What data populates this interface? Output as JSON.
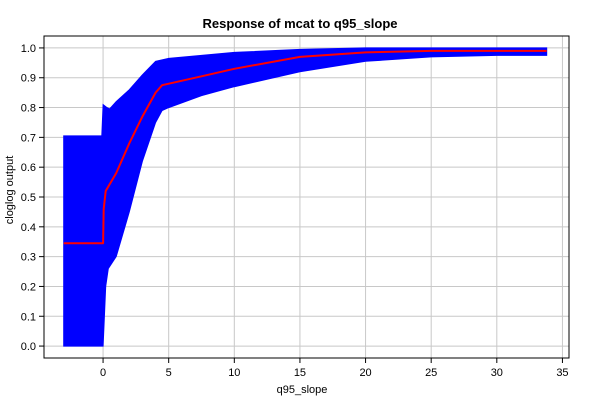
{
  "chart_data": {
    "type": "area",
    "title": "Response of mcat to q95_slope",
    "xlabel": "q95_slope",
    "ylabel": "cloglog output",
    "xlim": [
      -4.5,
      35.5
    ],
    "ylim": [
      -0.04,
      1.04
    ],
    "x_ticks": [
      0,
      5,
      10,
      15,
      20,
      25,
      30,
      35
    ],
    "y_ticks": [
      0.0,
      0.1,
      0.2,
      0.3,
      0.4,
      0.5,
      0.6,
      0.7,
      0.8,
      0.9,
      1.0
    ],
    "x_tick_labels": [
      "0",
      "5",
      "10",
      "15",
      "20",
      "25",
      "30",
      "35"
    ],
    "y_tick_labels": [
      "0.0",
      "0.1",
      "0.2",
      "0.3",
      "0.4",
      "0.5",
      "0.6",
      "0.7",
      "0.8",
      "0.9",
      "1.0"
    ],
    "grid": true,
    "series": [
      {
        "type": "band",
        "color": "#0000ff",
        "upper": [
          [
            -3.0,
            0.705
          ],
          [
            -0.1,
            0.705
          ],
          [
            -0.1,
            0.705
          ],
          [
            0.0,
            0.81
          ],
          [
            0.3,
            0.8
          ],
          [
            0.5,
            0.795
          ],
          [
            1.0,
            0.82
          ],
          [
            2.0,
            0.86
          ],
          [
            3.0,
            0.91
          ],
          [
            4.0,
            0.955
          ],
          [
            5.0,
            0.965
          ],
          [
            7.5,
            0.975
          ],
          [
            10.0,
            0.985
          ],
          [
            15.0,
            0.995
          ],
          [
            20.0,
            1.0
          ],
          [
            25.0,
            1.0
          ],
          [
            30.0,
            1.0
          ],
          [
            33.8,
            1.0
          ]
        ],
        "lower": [
          [
            -3.0,
            0.0
          ],
          [
            0.0,
            0.0
          ],
          [
            0.2,
            0.2
          ],
          [
            0.4,
            0.26
          ],
          [
            1.0,
            0.3
          ],
          [
            2.0,
            0.45
          ],
          [
            3.0,
            0.62
          ],
          [
            4.0,
            0.75
          ],
          [
            4.5,
            0.79
          ],
          [
            5.0,
            0.8
          ],
          [
            7.5,
            0.84
          ],
          [
            10.0,
            0.87
          ],
          [
            15.0,
            0.92
          ],
          [
            20.0,
            0.955
          ],
          [
            25.0,
            0.97
          ],
          [
            30.0,
            0.975
          ],
          [
            33.8,
            0.975
          ]
        ]
      },
      {
        "type": "line",
        "color": "#ff0000",
        "points": [
          [
            -3.0,
            0.345
          ],
          [
            0.0,
            0.345
          ],
          [
            0.05,
            0.46
          ],
          [
            0.2,
            0.52
          ],
          [
            1.0,
            0.58
          ],
          [
            2.0,
            0.68
          ],
          [
            3.0,
            0.77
          ],
          [
            4.0,
            0.85
          ],
          [
            4.5,
            0.875
          ],
          [
            7.5,
            0.905
          ],
          [
            10.0,
            0.93
          ],
          [
            15.0,
            0.97
          ],
          [
            20.0,
            0.985
          ],
          [
            25.0,
            0.99
          ],
          [
            30.0,
            0.99
          ],
          [
            33.8,
            0.99
          ]
        ]
      }
    ]
  }
}
